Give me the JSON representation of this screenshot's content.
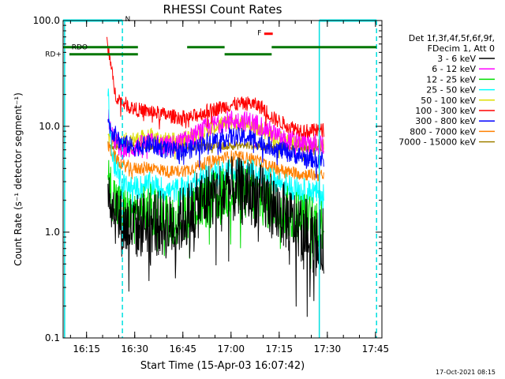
{
  "chart_data": {
    "type": "line",
    "title": "RHESSI Count Rates",
    "xlabel": "Start Time (15-Apr-03 16:07:42)",
    "ylabel": "Count Rate (s⁻¹ detector segment⁻¹)",
    "yscale": "log",
    "ylim": [
      0.1,
      100.0
    ],
    "xlim": [
      "16:07:42",
      "17:47:00"
    ],
    "x_ticks": [
      "16:15",
      "16:30",
      "16:45",
      "17:00",
      "17:15",
      "17:30",
      "17:45"
    ],
    "y_ticks": [
      "0.1",
      "1.0",
      "10.0",
      "100.0"
    ],
    "timestamp": "17-Oct-2021 08:15",
    "legend": {
      "position": "right",
      "header": [
        "Det 1f,3f,4f,5f,6f,9f,",
        "FDecim 1, Att 0"
      ],
      "entries": [
        {
          "label": "3 - 6 keV",
          "color": "#000000"
        },
        {
          "label": "6 - 12 keV",
          "color": "#ff00ff"
        },
        {
          "label": "12 - 25 keV",
          "color": "#00dd00"
        },
        {
          "label": "25 - 50 keV",
          "color": "#00ffff"
        },
        {
          "label": "50 - 100 keV",
          "color": "#dddd00"
        },
        {
          "label": "100 - 300 keV",
          "color": "#ff0000"
        },
        {
          "label": "300 - 800 keV",
          "color": "#0000ff"
        },
        {
          "label": "800 - 7000 keV",
          "color": "#ff8000"
        },
        {
          "label": "7000 - 15000 keV",
          "color": "#a08000"
        }
      ]
    },
    "series": [
      {
        "name": "3 - 6 keV",
        "color": "#000000",
        "noise": 0.32,
        "points": [
          [
            "16:21:40",
            3.0
          ],
          [
            "16:23:00",
            1.8
          ],
          [
            "16:26:00",
            1.2
          ],
          [
            "16:30:00",
            1.1
          ],
          [
            "16:35:00",
            1.3
          ],
          [
            "16:41:00",
            1.1
          ],
          [
            "16:47:00",
            1.5
          ],
          [
            "16:53:00",
            2.2
          ],
          [
            "17:00:00",
            2.5
          ],
          [
            "17:06:00",
            2.4
          ],
          [
            "17:12:00",
            1.9
          ],
          [
            "17:18:00",
            1.3
          ],
          [
            "17:24:00",
            1.0
          ],
          [
            "17:27:00",
            0.75
          ],
          [
            "17:29:00",
            0.85
          ]
        ]
      },
      {
        "name": "6 - 12 keV",
        "color": "#ff00ff",
        "noise": 0.1,
        "points": [
          [
            "16:21:40",
            14.0
          ],
          [
            "16:23:00",
            8.0
          ],
          [
            "16:26:00",
            6.0
          ],
          [
            "16:30:00",
            6.3
          ],
          [
            "16:35:00",
            7.0
          ],
          [
            "16:41:00",
            6.5
          ],
          [
            "16:47:00",
            7.5
          ],
          [
            "16:53:00",
            10.0
          ],
          [
            "17:00:00",
            11.5
          ],
          [
            "17:06:00",
            11.0
          ],
          [
            "17:10:00",
            10.0
          ],
          [
            "17:16:00",
            7.5
          ],
          [
            "17:24:00",
            7.0
          ],
          [
            "17:29:00",
            6.5
          ]
        ]
      },
      {
        "name": "12 - 25 keV",
        "color": "#00dd00",
        "noise": 0.26,
        "points": [
          [
            "16:21:40",
            3.3
          ],
          [
            "16:23:00",
            2.3
          ],
          [
            "16:26:00",
            1.5
          ],
          [
            "16:30:00",
            1.4
          ],
          [
            "16:35:00",
            1.6
          ],
          [
            "16:41:00",
            1.3
          ],
          [
            "16:47:00",
            1.6
          ],
          [
            "16:53:00",
            2.0
          ],
          [
            "17:00:00",
            2.4
          ],
          [
            "17:06:00",
            2.3
          ],
          [
            "17:12:00",
            1.9
          ],
          [
            "17:18:00",
            1.5
          ],
          [
            "17:24:00",
            1.3
          ],
          [
            "17:29:00",
            1.2
          ]
        ]
      },
      {
        "name": "25 - 50 keV",
        "color": "#00ffff",
        "noise": 0.12,
        "points": [
          [
            "16:21:40",
            20.0
          ],
          [
            "16:23:00",
            5.0
          ],
          [
            "16:26:00",
            2.8
          ],
          [
            "16:30:00",
            2.6
          ],
          [
            "16:35:00",
            2.8
          ],
          [
            "16:41:00",
            2.4
          ],
          [
            "16:47:00",
            2.7
          ],
          [
            "16:53:00",
            3.4
          ],
          [
            "17:00:00",
            3.9
          ],
          [
            "17:06:00",
            3.8
          ],
          [
            "17:12:00",
            3.2
          ],
          [
            "17:18:00",
            2.7
          ],
          [
            "17:24:00",
            2.4
          ],
          [
            "17:29:00",
            2.3
          ]
        ]
      },
      {
        "name": "50 - 100 keV",
        "color": "#dddd00",
        "noise": 0.08,
        "points": [
          [
            "16:21:40",
            8.0
          ],
          [
            "16:24:00",
            7.0
          ],
          [
            "16:30:00",
            7.5
          ],
          [
            "16:35:00",
            8.0
          ],
          [
            "16:41:00",
            7.2
          ],
          [
            "16:47:00",
            7.8
          ],
          [
            "16:53:00",
            9.5
          ],
          [
            "17:00:00",
            11.0
          ],
          [
            "17:06:00",
            10.5
          ],
          [
            "17:12:00",
            8.5
          ],
          [
            "17:18:00",
            7.0
          ],
          [
            "17:24:00",
            6.8
          ],
          [
            "17:29:00",
            6.5
          ]
        ]
      },
      {
        "name": "100 - 300 keV",
        "color": "#ff0000",
        "noise": 0.07,
        "points": [
          [
            "16:21:20",
            60.0
          ],
          [
            "16:22:00",
            50.0
          ],
          [
            "16:23:00",
            30.0
          ],
          [
            "16:24:00",
            20.0
          ],
          [
            "16:26:00",
            17.0
          ],
          [
            "16:30:00",
            14.5
          ],
          [
            "16:35:00",
            13.8
          ],
          [
            "16:41:00",
            12.5
          ],
          [
            "16:47:00",
            12.0
          ],
          [
            "16:53:00",
            14.0
          ],
          [
            "17:00:00",
            16.0
          ],
          [
            "17:06:00",
            16.5
          ],
          [
            "17:10:00",
            15.0
          ],
          [
            "17:13:00",
            12.0
          ],
          [
            "17:18:00",
            10.0
          ],
          [
            "17:24:00",
            9.0
          ],
          [
            "17:29:00",
            9.2
          ]
        ]
      },
      {
        "name": "300 - 800 keV",
        "color": "#0000ff",
        "noise": 0.09,
        "points": [
          [
            "16:21:40",
            11.0
          ],
          [
            "16:23:00",
            9.0
          ],
          [
            "16:26:00",
            7.0
          ],
          [
            "16:30:00",
            6.3
          ],
          [
            "16:35:00",
            6.8
          ],
          [
            "16:41:00",
            5.8
          ],
          [
            "16:47:00",
            6.0
          ],
          [
            "16:53:00",
            7.2
          ],
          [
            "17:00:00",
            8.0
          ],
          [
            "17:06:00",
            7.8
          ],
          [
            "17:12:00",
            6.5
          ],
          [
            "17:18:00",
            5.6
          ],
          [
            "17:24:00",
            5.0
          ],
          [
            "17:29:00",
            4.8
          ]
        ]
      },
      {
        "name": "800 - 7000 keV",
        "color": "#ff8000",
        "noise": 0.06,
        "points": [
          [
            "16:21:40",
            6.5
          ],
          [
            "16:23:00",
            5.5
          ],
          [
            "16:26:00",
            4.3
          ],
          [
            "16:30:00",
            4.0
          ],
          [
            "16:35:00",
            4.1
          ],
          [
            "16:41:00",
            3.7
          ],
          [
            "16:47:00",
            3.9
          ],
          [
            "16:53:00",
            4.6
          ],
          [
            "17:00:00",
            5.2
          ],
          [
            "17:06:00",
            5.0
          ],
          [
            "17:12:00",
            4.2
          ],
          [
            "17:18:00",
            3.7
          ],
          [
            "17:24:00",
            3.5
          ],
          [
            "17:29:00",
            3.4
          ]
        ]
      },
      {
        "name": "7000 - 15000 keV",
        "color": "#a08000",
        "noise": 0.04,
        "points": [
          [
            "16:21:40",
            6.8
          ],
          [
            "16:24:00",
            6.5
          ],
          [
            "16:30:00",
            6.6
          ],
          [
            "16:41:00",
            6.4
          ],
          [
            "16:53:00",
            6.5
          ],
          [
            "17:06:00",
            6.6
          ],
          [
            "17:18:00",
            6.3
          ],
          [
            "17:29:00",
            6.4
          ]
        ]
      }
    ],
    "vertical_lines": [
      {
        "time": "16:08:10",
        "color": "#00e0e0",
        "style": "solid"
      },
      {
        "time": "16:26:10",
        "color": "#00e0e0",
        "style": "dashed"
      },
      {
        "time": "17:27:30",
        "color": "#00e0e0",
        "style": "solid"
      },
      {
        "time": "17:45:20",
        "color": "#00e0e0",
        "style": "dashed"
      }
    ],
    "flag_bars": [
      {
        "label": "N",
        "color": "#00ffff",
        "label_color": "#00ffff",
        "segments": [
          [
            "16:07:42",
            "16:26:10"
          ],
          [
            "17:27:30",
            "17:45:20"
          ]
        ],
        "y": 100.0
      },
      {
        "label": "F",
        "color": "#ff0000",
        "label_color": "#ff0000",
        "segments": [
          [
            "17:10:20",
            "17:13:00"
          ]
        ],
        "y": 75.0
      },
      {
        "label": "RDO",
        "color": "#007700",
        "label_color": "#007700",
        "segments": [
          [
            "16:07:42",
            "16:31:00"
          ],
          [
            "16:46:20",
            "16:58:00"
          ],
          [
            "17:12:40",
            "17:45:20"
          ]
        ],
        "y": 56.0
      },
      {
        "label": "RD+",
        "color": "#007700",
        "label_color": "#007700",
        "segments": [
          [
            "16:09:40",
            "16:31:00"
          ],
          [
            "16:58:00",
            "17:12:40"
          ]
        ],
        "y": 48.0
      }
    ]
  }
}
